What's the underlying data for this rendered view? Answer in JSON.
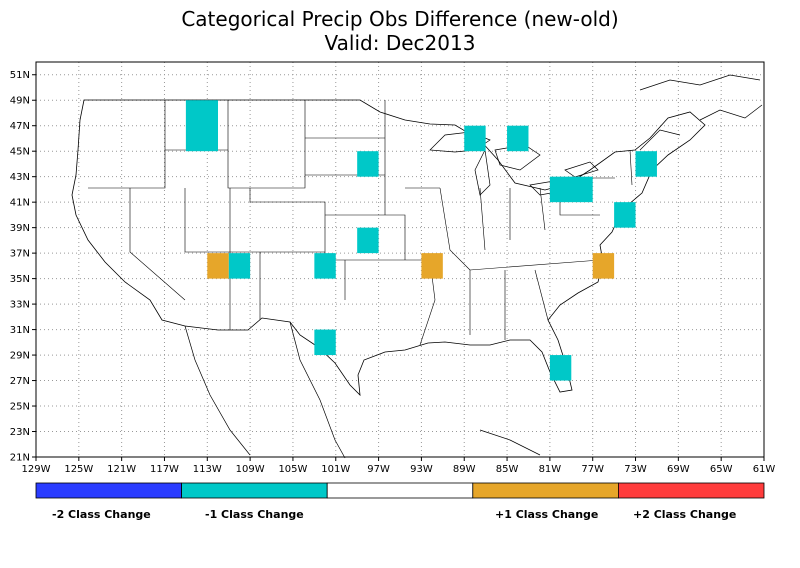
{
  "title": "Categorical Precip Obs Difference (new-old)",
  "subtitle": "Valid: Dec2013",
  "map": {
    "lat_labels": [
      "51N",
      "49N",
      "47N",
      "45N",
      "43N",
      "41N",
      "39N",
      "37N",
      "35N",
      "33N",
      "31N",
      "29N",
      "27N",
      "25N",
      "23N",
      "21N"
    ],
    "lon_labels": [
      "129W",
      "125W",
      "121W",
      "117W",
      "113W",
      "109W",
      "105W",
      "101W",
      "97W",
      "93W",
      "89W",
      "85W",
      "81W",
      "77W",
      "73W",
      "69W",
      "65W",
      "61W"
    ],
    "lat_range": [
      21,
      52
    ],
    "lon_range": [
      -129,
      -61
    ],
    "grid": "dotted",
    "boxes": [
      {
        "lon0": -115,
        "lon1": -112,
        "lat0": 45,
        "lat1": 49,
        "category": -1
      },
      {
        "lon0": -99,
        "lon1": -97,
        "lat0": 43,
        "lat1": 45,
        "category": -1
      },
      {
        "lon0": -99,
        "lon1": -97,
        "lat0": 37,
        "lat1": 39,
        "category": -1
      },
      {
        "lon0": -89,
        "lon1": -87,
        "lat0": 45,
        "lat1": 47,
        "category": -1
      },
      {
        "lon0": -85,
        "lon1": -83,
        "lat0": 45,
        "lat1": 47,
        "category": -1
      },
      {
        "lon0": -81,
        "lon1": -77,
        "lat0": 41,
        "lat1": 43,
        "category": -1
      },
      {
        "lon0": -75,
        "lon1": -73,
        "lat0": 39,
        "lat1": 41,
        "category": -1
      },
      {
        "lon0": -73,
        "lon1": -71,
        "lat0": 43,
        "lat1": 45,
        "category": -1
      },
      {
        "lon0": -111,
        "lon1": -109,
        "lat0": 35,
        "lat1": 37,
        "category": -1
      },
      {
        "lon0": -113,
        "lon1": -111,
        "lat0": 35,
        "lat1": 37,
        "category": 1
      },
      {
        "lon0": -103,
        "lon1": -101,
        "lat0": 35,
        "lat1": 37,
        "category": -1
      },
      {
        "lon0": -103,
        "lon1": -101,
        "lat0": 29,
        "lat1": 31,
        "category": -1
      },
      {
        "lon0": -93,
        "lon1": -91,
        "lat0": 35,
        "lat1": 37,
        "category": 1
      },
      {
        "lon0": -77,
        "lon1": -75,
        "lat0": 35,
        "lat1": 37,
        "category": 1
      },
      {
        "lon0": -81,
        "lon1": -79,
        "lat0": 27,
        "lat1": 29,
        "category": -1
      }
    ]
  },
  "legend": {
    "colors": {
      "-2": "#2a3cff",
      "-1": "#00c8c8",
      "0": "#ffffff",
      "1": "#e6a62a",
      "2": "#ff3c3c"
    },
    "labels": [
      "-2 Class Change",
      "-1 Class Change",
      "+1 Class Change",
      "+2 Class Change"
    ]
  }
}
